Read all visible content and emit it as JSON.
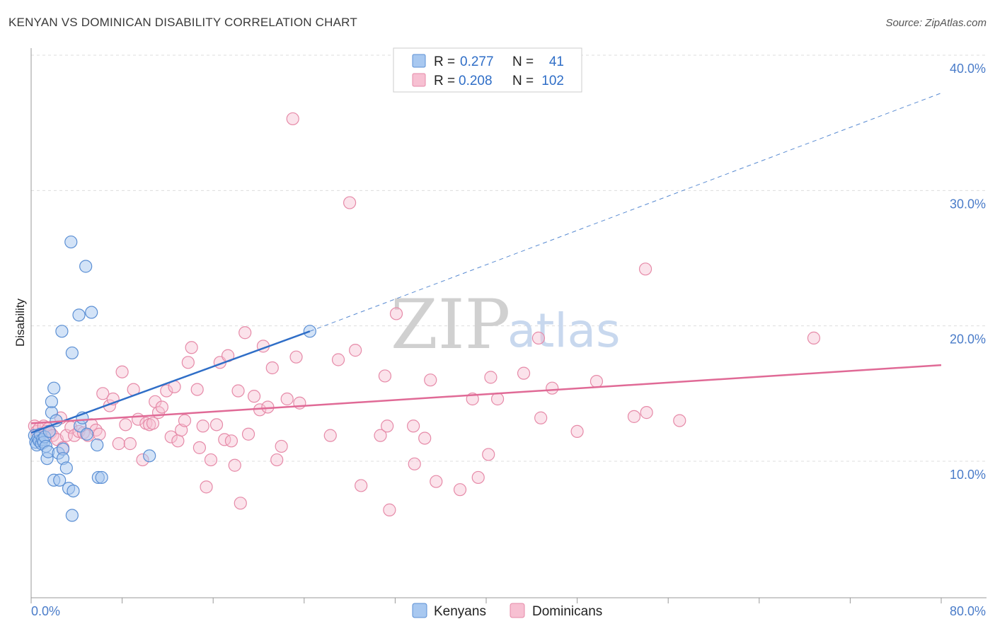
{
  "title": "KENYAN VS DOMINICAN DISABILITY CORRELATION CHART",
  "source": "Source: ZipAtlas.com",
  "watermark": {
    "zip": "ZIP",
    "atlas": "atlas"
  },
  "legend": {
    "kenyans": {
      "r_label": "R =",
      "r_value": "0.277",
      "n_label": "N =",
      "n_value": "41"
    },
    "dominicans": {
      "r_label": "R =",
      "r_value": "0.208",
      "n_label": "N =",
      "n_value": "102"
    }
  },
  "colors": {
    "kenyans_fill": "#a8c8f0",
    "kenyans_stroke": "#5b8fd4",
    "kenyans_line": "#2f6ec7",
    "dominicans_fill": "#f7c0d2",
    "dominicans_stroke": "#e68aa8",
    "dominicans_line": "#e06a96",
    "grid": "#dddddd",
    "tick_text": "#4a7cc9"
  },
  "chart_data": {
    "type": "scatter",
    "title": "KENYAN VS DOMINICAN DISABILITY CORRELATION CHART",
    "xlabel": "",
    "ylabel": "Disability",
    "xlim": [
      0,
      80
    ],
    "ylim": [
      0,
      42
    ],
    "x_tick_labels": [
      "0.0%",
      "80.0%"
    ],
    "y_ticks": [
      10,
      20,
      30,
      40
    ],
    "y_tick_labels": [
      "10.0%",
      "20.0%",
      "30.0%",
      "40.0%"
    ],
    "grid": true,
    "legend_position": "bottom",
    "series": [
      {
        "name": "Kenyans",
        "r": 0.277,
        "n": 41,
        "trend": {
          "x0": 0,
          "y0": 12.1,
          "x1": 24.5,
          "y1": 19.6,
          "x_ext": 80,
          "y_ext": 37.2
        },
        "points": [
          [
            0.3,
            11.9
          ],
          [
            0.4,
            11.4
          ],
          [
            0.5,
            11.2
          ],
          [
            0.6,
            11.7
          ],
          [
            0.7,
            11.5
          ],
          [
            0.8,
            12.0
          ],
          [
            0.9,
            11.3
          ],
          [
            1.0,
            11.6
          ],
          [
            1.1,
            11.4
          ],
          [
            1.2,
            11.8
          ],
          [
            1.3,
            11.1
          ],
          [
            1.4,
            10.2
          ],
          [
            1.5,
            10.7
          ],
          [
            1.6,
            12.2
          ],
          [
            1.8,
            13.6
          ],
          [
            1.8,
            14.4
          ],
          [
            2.0,
            15.4
          ],
          [
            2.0,
            8.6
          ],
          [
            2.2,
            13.0
          ],
          [
            2.4,
            10.6
          ],
          [
            2.5,
            8.6
          ],
          [
            2.7,
            19.6
          ],
          [
            2.8,
            10.9
          ],
          [
            2.8,
            10.2
          ],
          [
            3.1,
            9.5
          ],
          [
            3.3,
            8.0
          ],
          [
            3.5,
            26.2
          ],
          [
            3.6,
            18.0
          ],
          [
            3.7,
            7.8
          ],
          [
            3.6,
            6.0
          ],
          [
            4.2,
            20.8
          ],
          [
            4.3,
            12.6
          ],
          [
            4.5,
            13.2
          ],
          [
            4.8,
            24.4
          ],
          [
            4.9,
            12.0
          ],
          [
            5.3,
            21.0
          ],
          [
            5.8,
            11.2
          ],
          [
            5.9,
            8.8
          ],
          [
            6.2,
            8.8
          ],
          [
            10.4,
            10.4
          ],
          [
            24.5,
            19.6
          ]
        ]
      },
      {
        "name": "Dominicans",
        "r": 0.208,
        "n": 102,
        "trend": {
          "x0": 0,
          "y0": 12.8,
          "x1": 80,
          "y1": 17.1
        },
        "points": [
          [
            0.3,
            12.6
          ],
          [
            0.5,
            12.2
          ],
          [
            0.7,
            12.4
          ],
          [
            0.9,
            12.0
          ],
          [
            1.1,
            12.6
          ],
          [
            1.3,
            12.2
          ],
          [
            1.5,
            12.4
          ],
          [
            1.7,
            12.1
          ],
          [
            1.9,
            11.9
          ],
          [
            2.3,
            11.6
          ],
          [
            2.6,
            13.2
          ],
          [
            2.8,
            11.0
          ],
          [
            3.1,
            11.9
          ],
          [
            3.5,
            12.5
          ],
          [
            3.8,
            11.9
          ],
          [
            4.2,
            12.2
          ],
          [
            4.6,
            12.1
          ],
          [
            5.0,
            11.9
          ],
          [
            5.3,
            12.7
          ],
          [
            5.7,
            12.3
          ],
          [
            6.0,
            12.0
          ],
          [
            6.3,
            15.0
          ],
          [
            6.9,
            14.1
          ],
          [
            7.2,
            14.6
          ],
          [
            7.7,
            11.3
          ],
          [
            8.0,
            16.6
          ],
          [
            8.3,
            12.7
          ],
          [
            8.7,
            11.3
          ],
          [
            9.0,
            15.3
          ],
          [
            9.4,
            13.1
          ],
          [
            9.8,
            10.1
          ],
          [
            10.1,
            12.8
          ],
          [
            10.4,
            12.7
          ],
          [
            10.7,
            12.8
          ],
          [
            10.9,
            14.4
          ],
          [
            11.2,
            13.6
          ],
          [
            11.5,
            14.0
          ],
          [
            11.9,
            15.2
          ],
          [
            12.3,
            11.8
          ],
          [
            12.6,
            15.5
          ],
          [
            12.9,
            11.5
          ],
          [
            13.2,
            12.3
          ],
          [
            13.5,
            13.0
          ],
          [
            13.8,
            17.3
          ],
          [
            14.1,
            18.4
          ],
          [
            14.6,
            15.3
          ],
          [
            14.8,
            11.0
          ],
          [
            15.1,
            12.6
          ],
          [
            15.4,
            8.1
          ],
          [
            15.8,
            10.1
          ],
          [
            16.3,
            12.7
          ],
          [
            16.6,
            17.3
          ],
          [
            17.0,
            11.6
          ],
          [
            17.3,
            17.8
          ],
          [
            17.6,
            11.5
          ],
          [
            17.9,
            9.7
          ],
          [
            18.2,
            15.2
          ],
          [
            18.4,
            6.9
          ],
          [
            18.8,
            19.5
          ],
          [
            19.1,
            12.0
          ],
          [
            19.6,
            14.8
          ],
          [
            20.1,
            13.8
          ],
          [
            20.4,
            18.5
          ],
          [
            20.8,
            14.0
          ],
          [
            21.2,
            16.9
          ],
          [
            21.6,
            10.1
          ],
          [
            22.0,
            11.1
          ],
          [
            22.5,
            14.6
          ],
          [
            23.3,
            17.7
          ],
          [
            23.6,
            14.3
          ],
          [
            26.3,
            11.9
          ],
          [
            27.0,
            17.5
          ],
          [
            28.0,
            29.1
          ],
          [
            28.5,
            18.2
          ],
          [
            29.0,
            8.2
          ],
          [
            30.7,
            11.9
          ],
          [
            31.1,
            16.3
          ],
          [
            31.3,
            12.6
          ],
          [
            31.5,
            6.4
          ],
          [
            32.1,
            20.9
          ],
          [
            33.6,
            12.6
          ],
          [
            33.7,
            9.8
          ],
          [
            34.6,
            11.7
          ],
          [
            35.1,
            16.0
          ],
          [
            35.6,
            8.5
          ],
          [
            37.7,
            7.9
          ],
          [
            38.8,
            14.6
          ],
          [
            39.3,
            8.8
          ],
          [
            40.2,
            10.5
          ],
          [
            40.4,
            16.2
          ],
          [
            41.0,
            14.6
          ],
          [
            43.3,
            16.5
          ],
          [
            44.6,
            19.1
          ],
          [
            44.8,
            13.2
          ],
          [
            45.8,
            15.4
          ],
          [
            48.0,
            12.2
          ],
          [
            49.7,
            15.9
          ],
          [
            53.0,
            13.3
          ],
          [
            54.1,
            13.6
          ],
          [
            54.0,
            24.2
          ],
          [
            57.0,
            13.0
          ],
          [
            68.8,
            19.1
          ]
        ]
      },
      {
        "name": "Dominicans outlier",
        "points": [
          [
            23.0,
            35.3
          ]
        ]
      }
    ]
  },
  "bottom_legend": [
    "Kenyans",
    "Dominicans"
  ]
}
